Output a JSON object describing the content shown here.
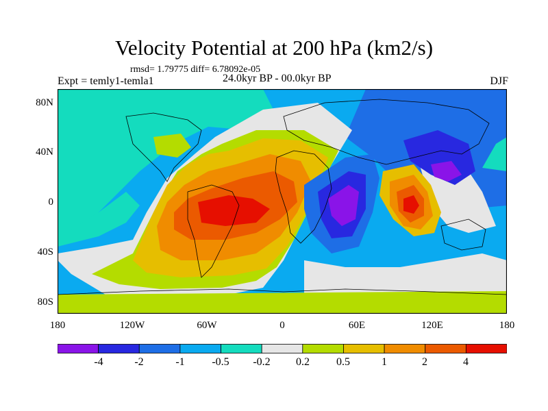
{
  "figure": {
    "title": "Velocity Potential at 200 hPa (km2/s)",
    "stats": "rmsd= 1.79775 diff= 6.78092e-05",
    "expt": "Expt = temly1-temla1",
    "period": "24.0kyr BP - 00.0kyr BP",
    "season": "DJF"
  },
  "axes": {
    "x_ticks": [
      "180",
      "120W",
      "60W",
      "0",
      "60E",
      "120E",
      "180"
    ],
    "y_ticks": [
      "80N",
      "40N",
      "0",
      "40S",
      "80S"
    ]
  },
  "colorbar": {
    "colors": [
      "#8a14e8",
      "#2828e0",
      "#1e6ee6",
      "#0aaaf0",
      "#14dcbe",
      "#e6e6e6",
      "#b4dc00",
      "#e6be00",
      "#f08c00",
      "#eb5a00",
      "#e60f00"
    ],
    "labels": [
      "-4",
      "-2",
      "-1",
      "-0.5",
      "-0.2",
      "0.2",
      "0.5",
      "1",
      "2",
      "4"
    ]
  }
}
